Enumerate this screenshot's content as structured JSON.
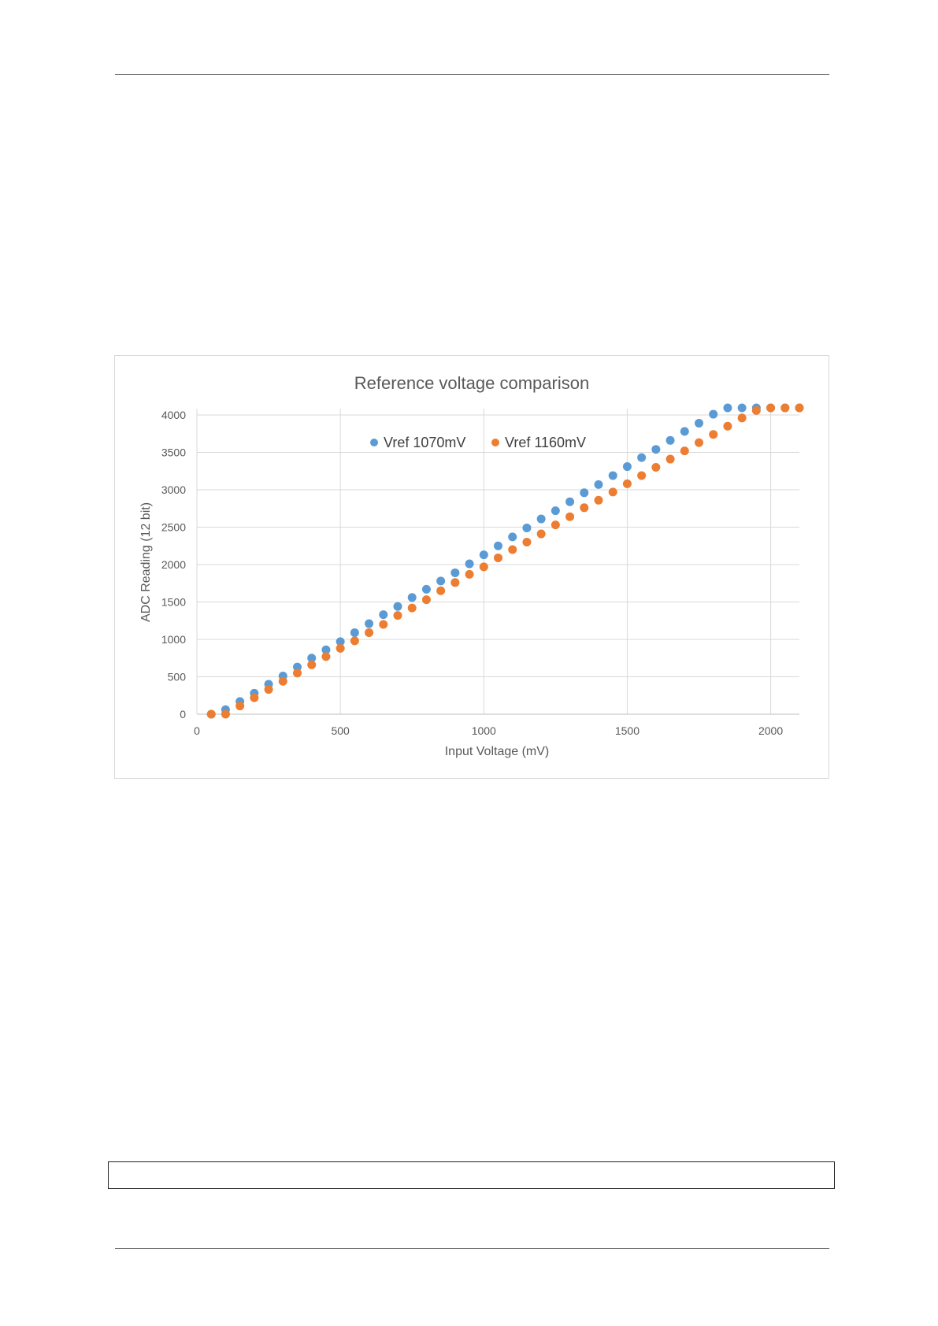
{
  "chart_data": {
    "type": "scatter",
    "title": "Reference voltage comparison",
    "xlabel": "Input Voltage (mV)",
    "ylabel": "ADC Reading (12 bit)",
    "xlim": [
      0,
      2100
    ],
    "ylim": [
      0,
      4000
    ],
    "x_ticks": [
      0,
      500,
      1000,
      1500,
      2000
    ],
    "y_ticks": [
      0,
      500,
      1000,
      1500,
      2000,
      2500,
      3000,
      3500,
      4000
    ],
    "grid": true,
    "legend_position": "top-center",
    "x": [
      50,
      100,
      150,
      200,
      250,
      300,
      350,
      400,
      450,
      500,
      550,
      600,
      650,
      700,
      750,
      800,
      850,
      900,
      950,
      1000,
      1050,
      1100,
      1150,
      1200,
      1250,
      1300,
      1350,
      1400,
      1450,
      1500,
      1550,
      1600,
      1650,
      1700,
      1750,
      1800,
      1850,
      1900,
      1950,
      2000,
      2050,
      2100
    ],
    "series": [
      {
        "name": "Vref 1070mV",
        "color": "#5b9bd5",
        "values": [
          0,
          60,
          170,
          280,
          400,
          510,
          630,
          750,
          860,
          970,
          1090,
          1210,
          1330,
          1440,
          1560,
          1670,
          1780,
          1890,
          2010,
          2130,
          2250,
          2370,
          2490,
          2610,
          2720,
          2840,
          2960,
          3070,
          3190,
          3310,
          3430,
          3540,
          3660,
          3780,
          3890,
          4010,
          4095,
          4095,
          4095,
          4095,
          4095,
          4095
        ]
      },
      {
        "name": "Vref 1160mV",
        "color": "#ed7d31",
        "values": [
          0,
          0,
          110,
          220,
          330,
          440,
          550,
          660,
          770,
          880,
          980,
          1090,
          1200,
          1320,
          1420,
          1530,
          1650,
          1760,
          1870,
          1970,
          2090,
          2200,
          2300,
          2410,
          2530,
          2640,
          2760,
          2860,
          2970,
          3080,
          3190,
          3300,
          3410,
          3520,
          3630,
          3740,
          3850,
          3960,
          4060,
          4095,
          4095,
          4095
        ]
      }
    ]
  }
}
